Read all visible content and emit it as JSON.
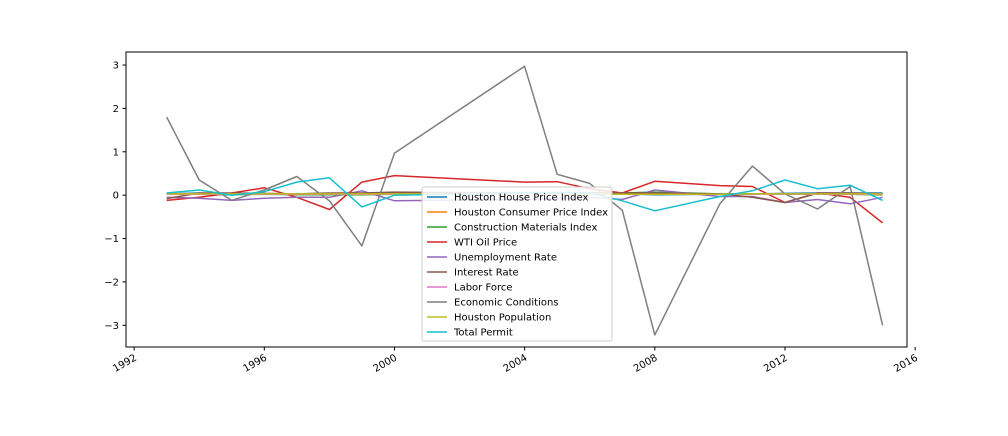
{
  "chart_data": {
    "type": "line",
    "title": "",
    "xlabel": "",
    "ylabel": "",
    "xlim": [
      1991.75,
      2015.75
    ],
    "ylim": [
      -3.5,
      3.3
    ],
    "xticks": [
      1992,
      1996,
      2000,
      2004,
      2008,
      2012,
      2016
    ],
    "xtick_labels": [
      "1992",
      "1996",
      "2000",
      "2004",
      "2008",
      "2012",
      "2016"
    ],
    "yticks": [
      -3,
      -2,
      -1,
      0,
      1,
      2,
      3
    ],
    "ytick_labels": [
      "−3",
      "−2",
      "−1",
      "0",
      "1",
      "2",
      "3"
    ],
    "grid": false,
    "legend_position": "lower center",
    "x": [
      1993,
      1994,
      1995,
      1996,
      1997,
      1998,
      1999,
      2000,
      2004,
      2005,
      2006,
      2007,
      2008,
      2010,
      2011,
      2012,
      2013,
      2014,
      2015
    ],
    "series": [
      {
        "name": "Houston House Price Index",
        "color": "#1f77b4",
        "values": [
          0.03,
          0.05,
          0.02,
          0.03,
          0.03,
          0.04,
          0.04,
          0.05,
          0.06,
          0.06,
          0.05,
          0.03,
          0.01,
          0.02,
          0.03,
          0.04,
          0.05,
          0.05,
          0.05
        ]
      },
      {
        "name": "Houston Consumer Price Index",
        "color": "#ff7f0e",
        "values": [
          0.03,
          0.03,
          0.03,
          0.03,
          0.02,
          0.02,
          0.02,
          0.03,
          0.03,
          0.03,
          0.03,
          0.03,
          0.04,
          0.02,
          0.03,
          0.02,
          0.02,
          0.02,
          0.01
        ]
      },
      {
        "name": "Construction Materials Index",
        "color": "#2ca02c",
        "values": [
          0.02,
          0.02,
          0.01,
          0.02,
          0.01,
          0.01,
          0.01,
          0.02,
          0.05,
          0.06,
          0.05,
          0.05,
          0.07,
          0.03,
          0.03,
          0.02,
          0.02,
          0.02,
          0.01
        ]
      },
      {
        "name": "WTI Oil Price",
        "color": "#d62728",
        "values": [
          -0.12,
          -0.05,
          0.05,
          0.17,
          -0.05,
          -0.33,
          0.3,
          0.45,
          0.3,
          0.31,
          0.15,
          0.05,
          0.32,
          0.22,
          0.2,
          -0.17,
          0.05,
          -0.05,
          -0.64
        ]
      },
      {
        "name": "Unemployment Rate",
        "color": "#9467bd",
        "values": [
          -0.05,
          -0.07,
          -0.12,
          -0.07,
          -0.05,
          -0.05,
          0.1,
          -0.13,
          -0.1,
          -0.08,
          -0.05,
          -0.1,
          0.12,
          -0.03,
          -0.03,
          -0.17,
          -0.1,
          -0.2,
          -0.05
        ]
      },
      {
        "name": "Interest Rate",
        "color": "#8c564b",
        "values": [
          -0.08,
          0.05,
          0.05,
          0.04,
          0.03,
          0.05,
          0.05,
          0.07,
          0.05,
          0.06,
          0.05,
          0.05,
          0.05,
          0.03,
          -0.05,
          -0.17,
          0.05,
          0.05,
          0.03
        ]
      },
      {
        "name": "Labor Force",
        "color": "#e377c2",
        "values": [
          0.02,
          0.02,
          0.02,
          0.02,
          0.02,
          0.02,
          0.02,
          0.02,
          0.02,
          0.02,
          0.02,
          0.02,
          0.02,
          0.02,
          0.02,
          0.02,
          0.02,
          0.02,
          0.02
        ]
      },
      {
        "name": "Economic Conditions",
        "color": "#7f7f7f",
        "values": [
          1.8,
          0.35,
          -0.12,
          0.12,
          0.43,
          -0.13,
          -1.17,
          0.97,
          2.97,
          0.48,
          0.27,
          -0.35,
          -3.22,
          -0.2,
          0.67,
          0.03,
          -0.32,
          0.2,
          -3.0
        ]
      },
      {
        "name": "Houston Population",
        "color": "#bcbd22",
        "values": [
          0.03,
          0.03,
          0.03,
          0.03,
          0.03,
          0.03,
          0.03,
          0.03,
          0.03,
          0.03,
          0.03,
          0.02,
          0.02,
          0.02,
          0.03,
          0.03,
          0.03,
          0.03,
          0.03
        ]
      },
      {
        "name": "Total Permit",
        "color": "#17becf",
        "values": [
          0.05,
          0.12,
          0.0,
          0.08,
          0.3,
          0.4,
          -0.27,
          0.0,
          0.05,
          0.05,
          0.05,
          -0.13,
          -0.36,
          -0.03,
          0.1,
          0.35,
          0.15,
          0.23,
          -0.12
        ]
      }
    ]
  }
}
